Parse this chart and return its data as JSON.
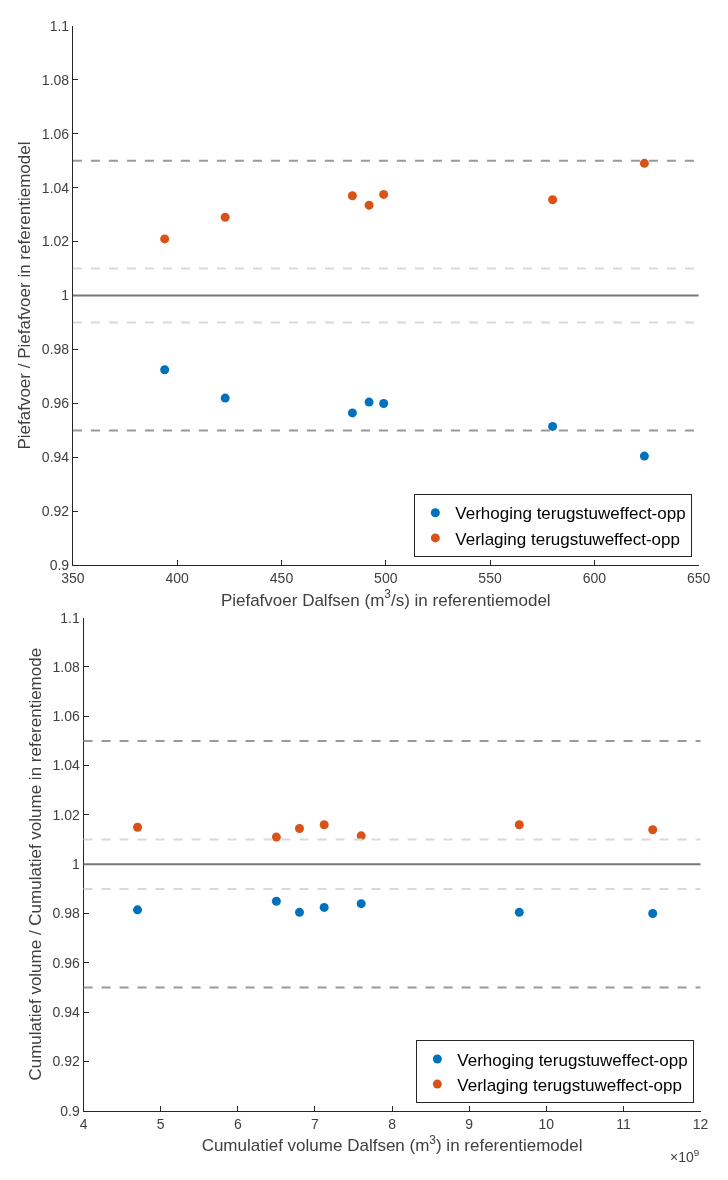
{
  "chart_data": [
    {
      "type": "scatter",
      "xlabel": "Piefafvoer Dalfsen (m$^{3}$/s) in referentiemodel",
      "ylabel": "Piefafvoer / Piefafvoer in referentiemodel",
      "x": [
        394,
        423,
        484,
        492,
        499,
        580,
        624
      ],
      "series": [
        {
          "name": "Verhoging terugstuweffect-opp",
          "color": "#0072bd",
          "values": [
            0.9725,
            0.962,
            0.9565,
            0.9605,
            0.96,
            0.9515,
            0.9405
          ]
        },
        {
          "name": "Verlaging terugstuweffect-opp",
          "color": "#d95319",
          "values": [
            1.021,
            1.029,
            1.037,
            1.0335,
            1.0375,
            1.0355,
            1.049
          ]
        }
      ],
      "xlim": [
        350,
        650
      ],
      "xticks": [
        350,
        400,
        450,
        500,
        550,
        600,
        650
      ],
      "ylim": [
        0.9,
        1.1
      ],
      "yticks": [
        0.9,
        0.92,
        0.94,
        0.96,
        0.98,
        1,
        1.02,
        1.04,
        1.06,
        1.08,
        1.1
      ],
      "ref_lines": [
        {
          "axis": "y",
          "value": 1.05,
          "color": "#999999",
          "line_style": "dashed"
        },
        {
          "axis": "y",
          "value": 0.95,
          "color": "#999999",
          "line_style": "dashed"
        },
        {
          "axis": "y",
          "value": 1.01,
          "color": "#d9d9d9",
          "line_style": "dashed"
        },
        {
          "axis": "y",
          "value": 0.99,
          "color": "#d9d9d9",
          "line_style": "dashed"
        },
        {
          "axis": "y",
          "value": 1,
          "color": "#777777",
          "line_style": "solid"
        }
      ],
      "marker": "circle",
      "legend": "bottom right"
    },
    {
      "type": "scatter",
      "xlabel": "Cumulatief volume Dalfsen (m$^{3}$) in referentiemodel",
      "ylabel": "Cumulatief volume / Cumulatief volume in referentiemode",
      "annotations": [
        "×10$^{9}$"
      ],
      "x": [
        4.7,
        6.5,
        6.8,
        7.12,
        7.6,
        9.65,
        11.38
      ],
      "series": [
        {
          "name": "Verhoging terugstuweffect-opp",
          "color": "#0072bd",
          "values": [
            0.9815,
            0.985,
            0.9805,
            0.9825,
            0.984,
            0.9805,
            0.98
          ]
        },
        {
          "name": "Verlaging terugstuweffect-opp",
          "color": "#d95319",
          "values": [
            1.015,
            1.011,
            1.0145,
            1.016,
            1.0115,
            1.016,
            1.014
          ]
        }
      ],
      "xlim": [
        4,
        12
      ],
      "xticks": [
        4,
        5,
        6,
        7,
        8,
        9,
        10,
        11,
        12
      ],
      "ylim": [
        0.9,
        1.1
      ],
      "yticks": [
        0.9,
        0.92,
        0.94,
        0.96,
        0.98,
        1,
        1.02,
        1.04,
        1.06,
        1.08,
        1.1
      ],
      "ref_lines": [
        {
          "axis": "y",
          "value": 1.05,
          "color": "#999999",
          "line_style": "dashed"
        },
        {
          "axis": "y",
          "value": 0.95,
          "color": "#999999",
          "line_style": "dashed"
        },
        {
          "axis": "y",
          "value": 1.01,
          "color": "#d9d9d9",
          "line_style": "dashed"
        },
        {
          "axis": "y",
          "value": 0.99,
          "color": "#d9d9d9",
          "line_style": "dashed"
        },
        {
          "axis": "y",
          "value": 1,
          "color": "#777777",
          "line_style": "solid"
        }
      ],
      "marker": "circle",
      "legend": "bottom right"
    }
  ]
}
